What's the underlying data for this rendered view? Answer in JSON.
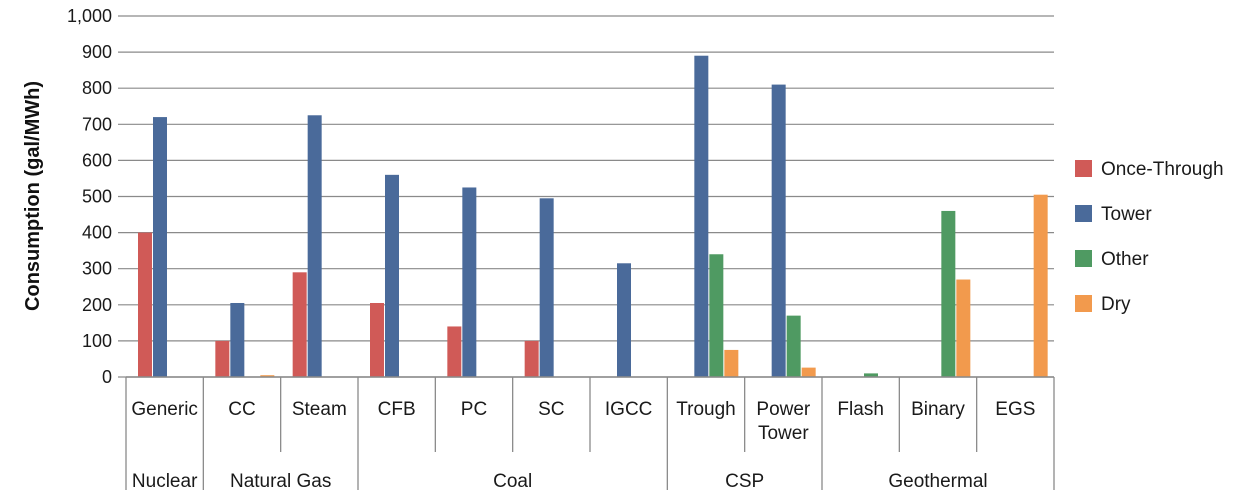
{
  "chart_data": {
    "type": "bar",
    "title": "",
    "xlabel": "",
    "ylabel": "Consumption (gal/MWh)",
    "ylim": [
      0,
      1000
    ],
    "yticks": [
      "0",
      "100",
      "200",
      "300",
      "400",
      "500",
      "600",
      "700",
      "800",
      "900",
      "1,000"
    ],
    "grid": true,
    "legend_position": "right",
    "categories": [
      "Generic",
      "CC",
      "Steam",
      "CFB",
      "PC",
      "SC",
      "IGCC",
      "Trough",
      "Power Tower",
      "Flash",
      "Binary",
      "EGS"
    ],
    "groups": [
      {
        "label": "Nuclear",
        "span": 1
      },
      {
        "label": "Natural Gas",
        "span": 2
      },
      {
        "label": "Coal",
        "span": 4
      },
      {
        "label": "CSP",
        "span": 2
      },
      {
        "label": "Geothermal",
        "span": 3
      }
    ],
    "series": [
      {
        "name": "Once-Through",
        "color": "#d05a57",
        "values": [
          400,
          100,
          290,
          205,
          140,
          100,
          0,
          0,
          0,
          0,
          0,
          0
        ]
      },
      {
        "name": "Tower",
        "color": "#4a6a9a",
        "values": [
          720,
          205,
          725,
          560,
          525,
          495,
          315,
          890,
          810,
          0,
          0,
          0
        ]
      },
      {
        "name": "Other",
        "color": "#4f9a62",
        "values": [
          0,
          0,
          0,
          0,
          0,
          0,
          0,
          340,
          170,
          10,
          460,
          0
        ]
      },
      {
        "name": "Dry",
        "color": "#f29a4d",
        "values": [
          0,
          5,
          0,
          0,
          0,
          0,
          0,
          75,
          26,
          0,
          270,
          505
        ]
      }
    ]
  }
}
